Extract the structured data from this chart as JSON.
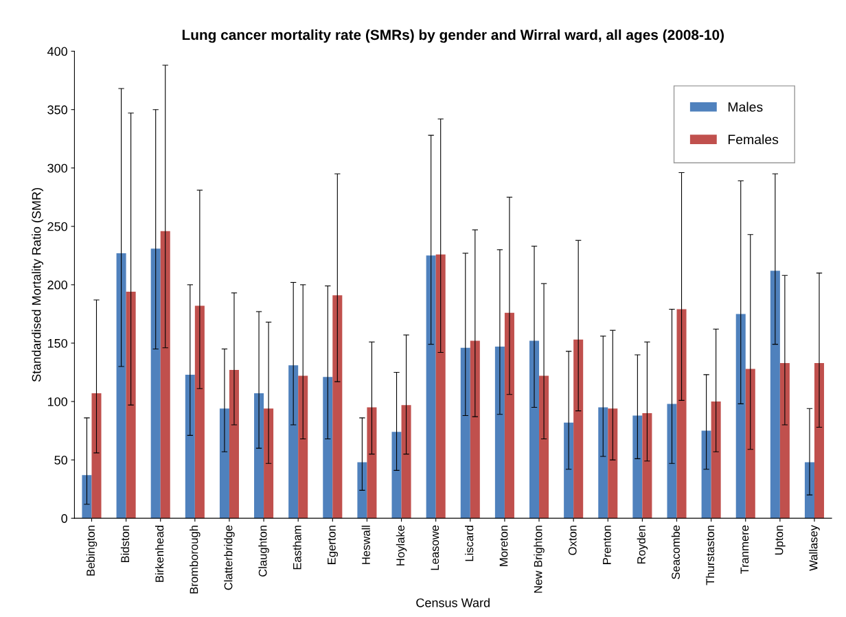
{
  "chart_data": {
    "type": "bar",
    "title": "Lung cancer mortality rate (SMRs) by gender and Wirral ward, all ages (2008-10)",
    "xlabel": "Census Ward",
    "ylabel": "Standardised Mortality Ratio (SMR)",
    "categories": [
      "Bebington",
      "Bidston",
      "Birkenhead",
      "Bromborough",
      "Clatterbridge",
      "Claughton",
      "Eastham",
      "Egerton",
      "Heswall",
      "Hoylake",
      "Leasowe",
      "Liscard",
      "Moreton",
      "New Brighton",
      "Oxton",
      "Prenton",
      "Royden",
      "Seacombe",
      "Thurstaston",
      "Tranmere",
      "Upton",
      "Wallasey"
    ],
    "series": [
      {
        "name": "Males",
        "color": "#4f81bd",
        "values": [
          37,
          227,
          231,
          123,
          94,
          107,
          131,
          121,
          48,
          74,
          225,
          146,
          147,
          152,
          82,
          95,
          88,
          98,
          75,
          175,
          212,
          48
        ],
        "errors": [
          [
            12,
            86
          ],
          [
            130,
            368
          ],
          [
            145,
            350
          ],
          [
            71,
            200
          ],
          [
            57,
            145
          ],
          [
            60,
            177
          ],
          [
            80,
            202
          ],
          [
            68,
            199
          ],
          [
            24,
            86
          ],
          [
            41,
            125
          ],
          [
            149,
            328
          ],
          [
            88,
            227
          ],
          [
            89,
            230
          ],
          [
            95,
            233
          ],
          [
            42,
            143
          ],
          [
            53,
            156
          ],
          [
            51,
            140
          ],
          [
            47,
            179
          ],
          [
            42,
            123
          ],
          [
            98,
            289
          ],
          [
            149,
            295
          ],
          [
            20,
            94
          ]
        ]
      },
      {
        "name": "Females",
        "color": "#c0504d",
        "values": [
          107,
          194,
          246,
          182,
          127,
          94,
          122,
          191,
          95,
          97,
          226,
          152,
          176,
          122,
          153,
          94,
          90,
          179,
          100,
          128,
          133,
          133
        ],
        "errors": [
          [
            56,
            187
          ],
          [
            97,
            347
          ],
          [
            146,
            388
          ],
          [
            111,
            281
          ],
          [
            80,
            193
          ],
          [
            47,
            168
          ],
          [
            68,
            200
          ],
          [
            117,
            295
          ],
          [
            55,
            151
          ],
          [
            55,
            157
          ],
          [
            142,
            342
          ],
          [
            87,
            247
          ],
          [
            106,
            275
          ],
          [
            68,
            201
          ],
          [
            92,
            238
          ],
          [
            50,
            161
          ],
          [
            49,
            151
          ],
          [
            101,
            296
          ],
          [
            57,
            162
          ],
          [
            59,
            243
          ],
          [
            80,
            208
          ],
          [
            78,
            210
          ]
        ]
      }
    ],
    "ylim": [
      0,
      400
    ],
    "yticks": [
      0,
      50,
      100,
      150,
      200,
      250,
      300,
      350,
      400
    ],
    "grid": false,
    "legend": "top right"
  }
}
